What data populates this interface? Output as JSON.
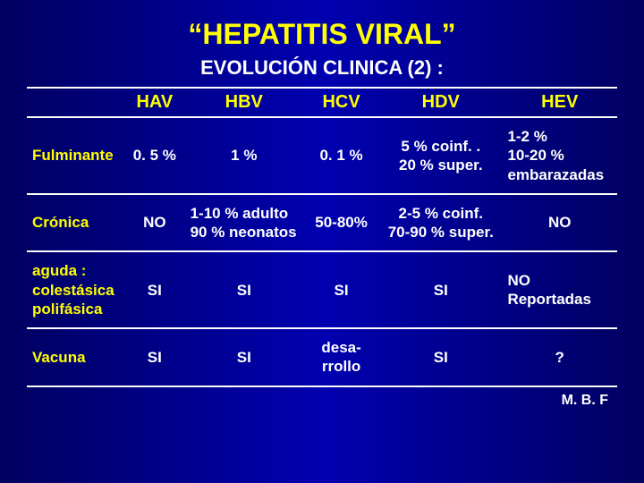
{
  "title": "“HEPATITIS VIRAL”",
  "subtitle": "EVOLUCIÓN CLINICA (2) :",
  "footer": "M. B. F",
  "table": {
    "columns": [
      "",
      "HAV",
      "HBV",
      "HCV",
      "HDV",
      "HEV"
    ],
    "col_widths": [
      "110px",
      "70px",
      "140px",
      "90px",
      "150px",
      "130px"
    ],
    "rows": [
      {
        "label": "Fulminante",
        "cells": [
          "0. 5 %",
          "1 %",
          "0. 1  %",
          "5 % coinf. .\n20 % super.",
          "1-2 %\n10-20 %\nembarazadas"
        ]
      },
      {
        "label": "Crónica",
        "cells": [
          "NO",
          "1-10 %  adulto\n90  % neonatos",
          "50-80%",
          "2-5  % coinf.\n70-90 % super.",
          "NO"
        ]
      },
      {
        "label": "aguda :\ncolestásica\npolifásica",
        "cells": [
          "SI",
          "SI",
          "SI",
          "SI",
          "NO\nReportadas"
        ]
      },
      {
        "label": "Vacuna",
        "cells": [
          "SI",
          "SI",
          "desa-\nrrollo",
          "SI",
          "?"
        ]
      }
    ],
    "header_color": "#ffff00",
    "rowlabel_color": "#ffff00",
    "cell_color": "#ffffff",
    "border_color": "#ffffff",
    "background_gradient": [
      "#000060",
      "#0000b0",
      "#000060"
    ],
    "title_fontsize": 32,
    "subtitle_fontsize": 22,
    "cell_fontsize": 17
  }
}
